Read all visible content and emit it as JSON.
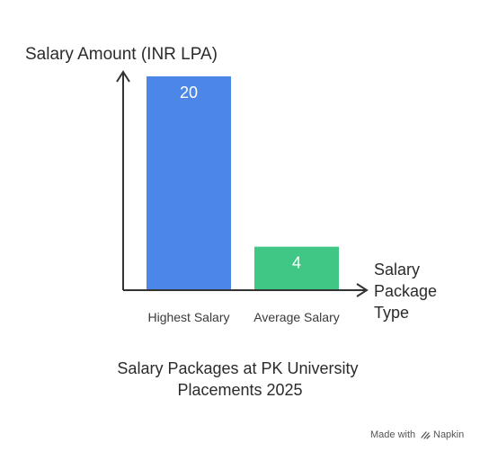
{
  "chart_data": {
    "type": "bar",
    "categories": [
      "Highest Salary",
      "Average Salary"
    ],
    "values": [
      20,
      4
    ],
    "value_labels": [
      "20",
      "4"
    ],
    "bar_colors": [
      "#4c86e6",
      "#41c785"
    ],
    "title_lines": [
      "Salary Packages at PK University",
      "Placements 2025"
    ],
    "ylabel": "Salary Amount (INR LPA)",
    "xlabel_lines": [
      "Salary",
      "Package",
      "Type"
    ],
    "ylim": [
      0,
      20
    ],
    "grid": false,
    "legend": "none"
  },
  "footer": {
    "made_with": "Made with",
    "brand": "Napkin"
  },
  "colors": {
    "axis": "#333333",
    "text": "#2b2b2b"
  }
}
